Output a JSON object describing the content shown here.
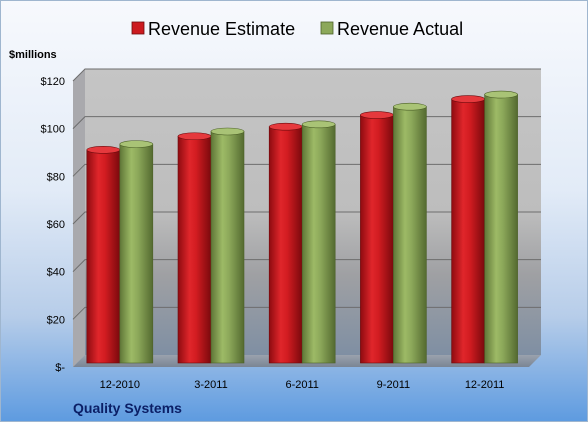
{
  "chart_data": {
    "type": "bar",
    "ylabel": "$millions",
    "categories": [
      "12-2010",
      "3-2011",
      "6-2011",
      "9-2011",
      "12-2011"
    ],
    "series": [
      {
        "name": "Revenue Estimate",
        "values": [
          89.1,
          94.8,
          98.8,
          103.7,
          110.4
        ],
        "color": "#cc1a1f"
      },
      {
        "name": "Revenue Actual",
        "values": [
          91.5,
          96.8,
          99.8,
          107.2,
          112.3
        ],
        "color": "#8ca85a"
      }
    ],
    "ylim": [
      0,
      120
    ],
    "yticks": [
      0,
      20,
      40,
      60,
      80,
      100,
      120
    ],
    "ytick_labels": [
      "$-",
      "$20",
      "$40",
      "$60",
      "$80",
      "$100",
      "$120"
    ],
    "grid": true,
    "legend_position": "top"
  },
  "footer": {
    "company": "Quality Systems"
  }
}
